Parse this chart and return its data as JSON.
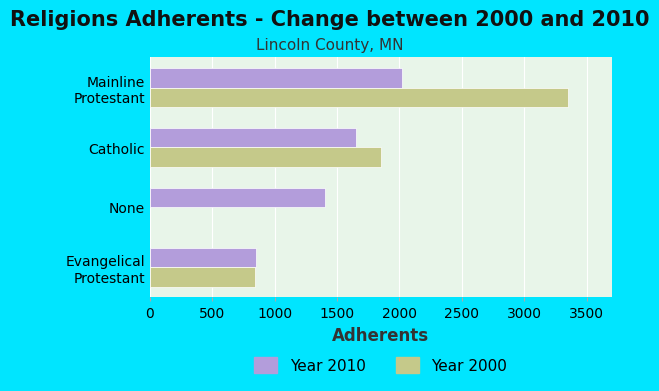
{
  "title": "Religions Adherents - Change between 2000 and 2010",
  "subtitle": "Lincoln County, MN",
  "xlabel": "Adherents",
  "categories": [
    "Evangelical\nProtestant",
    "None",
    "Catholic",
    "Mainline\nProtestant"
  ],
  "values_2010": [
    850,
    1400,
    1650,
    2020
  ],
  "values_2000": [
    840,
    0,
    1850,
    3350
  ],
  "color_2010": "#b39ddb",
  "color_2000": "#c5c98a",
  "background_outer": "#00e5ff",
  "background_inner": "#e8f5e9",
  "xlim": [
    0,
    3700
  ],
  "xticks": [
    0,
    500,
    1000,
    1500,
    2000,
    2500,
    3000,
    3500
  ],
  "legend_2010": "Year 2010",
  "legend_2000": "Year 2000",
  "title_fontsize": 15,
  "subtitle_fontsize": 11,
  "xlabel_fontsize": 12,
  "tick_fontsize": 10,
  "label_fontsize": 10,
  "legend_fontsize": 11
}
